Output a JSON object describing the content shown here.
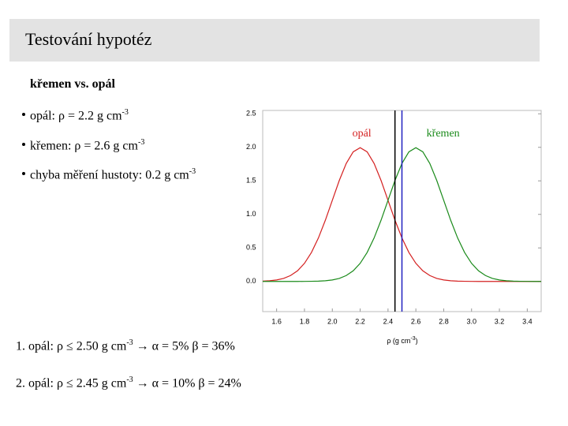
{
  "header": {
    "title": "Testování hypotéz"
  },
  "subtitle": "křemen vs. opál",
  "bullets": [
    {
      "text": "opál: ρ = 2.2 g cm",
      "sup": "-3"
    },
    {
      "text": "křemen: ρ = 2.6 g cm",
      "sup": "-3"
    },
    {
      "text": "chyba měření hustoty: 0.2 g cm",
      "sup": "-3"
    }
  ],
  "results": [
    {
      "text": "1. opál: ρ ≤ 2.50 g cm",
      "sup": "-3",
      "rest": " → α = 5% β = 36%"
    },
    {
      "text": "2. opál: ρ ≤ 2.45 g cm",
      "sup": "-3",
      "rest": " → α = 10% β = 24%"
    }
  ],
  "chart_data": {
    "type": "line",
    "xlabel": {
      "text": "ρ (g cm",
      "sup": "-3",
      "end": ")"
    },
    "x": [
      1.5,
      1.55,
      1.6,
      1.65,
      1.7,
      1.75,
      1.8,
      1.85,
      1.9,
      1.95,
      2.0,
      2.05,
      2.1,
      2.15,
      2.2,
      2.25,
      2.3,
      2.35,
      2.4,
      2.45,
      2.5,
      2.55,
      2.6,
      2.65,
      2.7,
      2.75,
      2.8,
      2.85,
      2.9,
      2.95,
      3.0,
      3.05,
      3.1,
      3.15,
      3.2,
      3.25,
      3.3,
      3.35,
      3.4,
      3.45,
      3.5
    ],
    "series": [
      {
        "name": "opál",
        "color": "#d42020",
        "values": [
          0.004,
          0.01,
          0.022,
          0.045,
          0.088,
          0.159,
          0.27,
          0.432,
          0.648,
          0.913,
          1.21,
          1.506,
          1.76,
          1.933,
          1.995,
          1.933,
          1.76,
          1.506,
          1.21,
          0.913,
          0.648,
          0.432,
          0.27,
          0.159,
          0.088,
          0.045,
          0.022,
          0.01,
          0.004,
          0.002,
          0.001,
          0,
          0,
          0,
          0,
          0,
          0,
          0,
          0,
          0,
          0
        ]
      },
      {
        "name": "křemen",
        "color": "#1a8a1a",
        "values": [
          0,
          0,
          0,
          0,
          0,
          0,
          0.001,
          0.002,
          0.004,
          0.01,
          0.022,
          0.045,
          0.088,
          0.159,
          0.27,
          0.432,
          0.648,
          0.913,
          1.21,
          1.506,
          1.76,
          1.933,
          1.995,
          1.933,
          1.76,
          1.506,
          1.21,
          0.913,
          0.648,
          0.432,
          0.27,
          0.159,
          0.088,
          0.045,
          0.022,
          0.01,
          0.004,
          0.002,
          0.001,
          0,
          0
        ]
      }
    ],
    "markers": [
      {
        "x": 2.45,
        "color": "#000000"
      },
      {
        "x": 2.5,
        "color": "#2020c0"
      }
    ],
    "xlim": [
      1.5,
      3.5
    ],
    "ylim": [
      -0.45,
      2.55
    ],
    "xticks": [
      1.6,
      1.8,
      {
        "value": 2,
        "label": "2.0"
      },
      2.2,
      2.4,
      2.6,
      2.8,
      {
        "value": 3,
        "label": "3.0"
      },
      3.2,
      3.4
    ],
    "yticks": [
      {
        "value": 0,
        "label": "0.0"
      },
      {
        "value": 0.5,
        "label": "0.5"
      },
      {
        "value": 1,
        "label": "1.0"
      },
      {
        "value": 1.5,
        "label": "1.5"
      },
      {
        "value": 2,
        "label": "2.0"
      },
      {
        "value": 2.5,
        "label": "2.5"
      }
    ]
  }
}
